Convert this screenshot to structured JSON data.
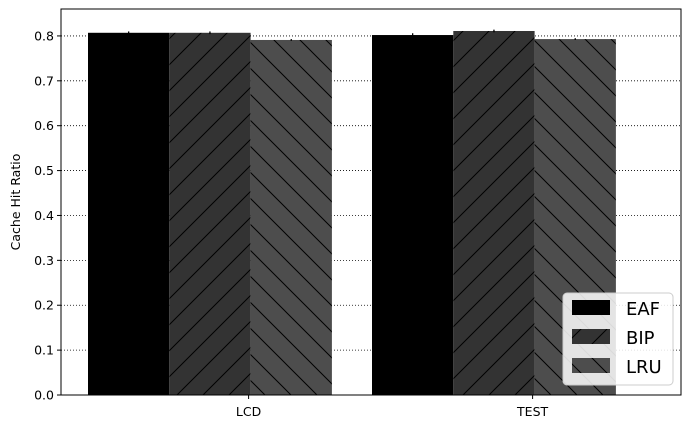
{
  "chart_data": {
    "type": "bar",
    "categories": [
      "LCD",
      "TEST"
    ],
    "series": [
      {
        "name": "EAF",
        "values": [
          0.807,
          0.802
        ],
        "errors": [
          0.003,
          0.004
        ],
        "color": "#000000",
        "hatch": "none"
      },
      {
        "name": "BIP",
        "values": [
          0.807,
          0.811
        ],
        "errors": [
          0.003,
          0.003
        ],
        "color": "#333333",
        "hatch": "/"
      },
      {
        "name": "LRU",
        "values": [
          0.791,
          0.793
        ],
        "errors": [
          0.002,
          0.002
        ],
        "color": "#4d4d4d",
        "hatch": "\\"
      }
    ],
    "ylabel": "Cache Hit Ratio",
    "xlabel": "",
    "ylim": [
      0,
      0.86
    ],
    "yticks": [
      "0.0",
      "0.1",
      "0.2",
      "0.3",
      "0.4",
      "0.5",
      "0.6",
      "0.7",
      "0.8"
    ],
    "grid": "y-dotted",
    "legend_position": "bottom-right"
  }
}
